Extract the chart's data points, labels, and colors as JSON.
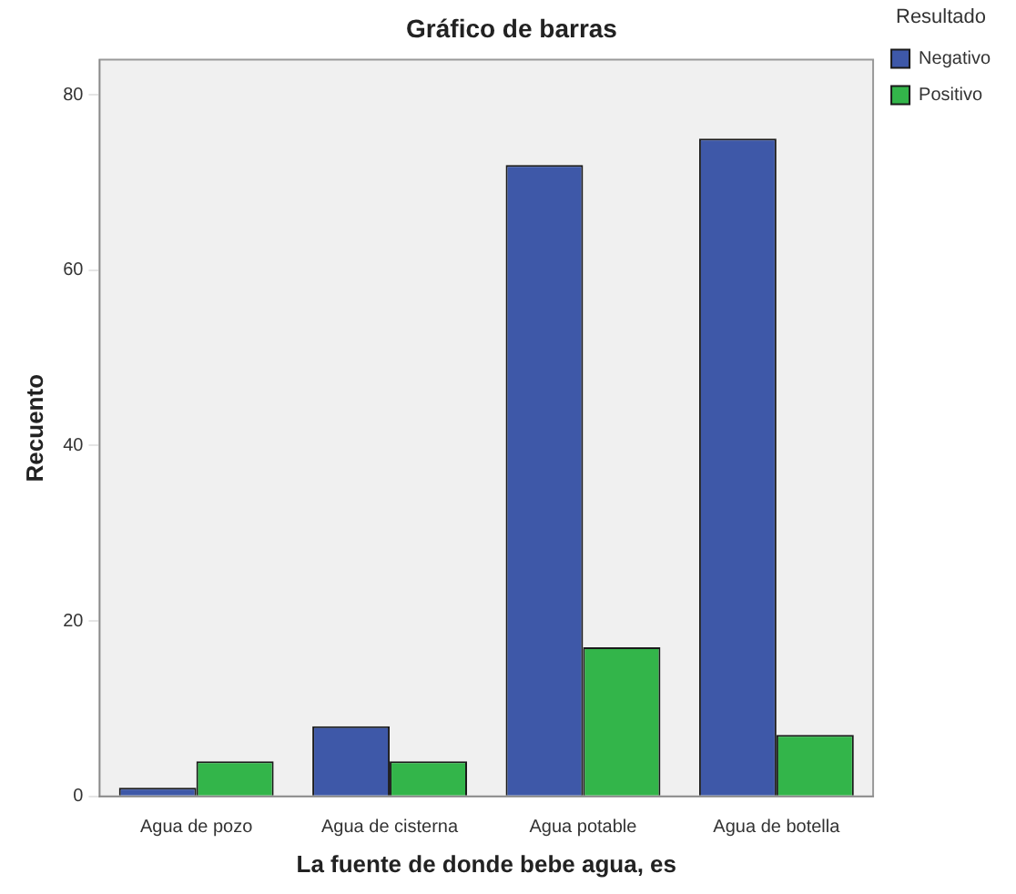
{
  "chart_data": {
    "type": "bar",
    "title": "Gráfico de barras",
    "xlabel": "La fuente de donde bebe agua, es",
    "ylabel": "Recuento",
    "legend_title": "Resultado",
    "categories": [
      "Agua de pozo",
      "Agua de cisterna",
      "Agua potable",
      "Agua de botella"
    ],
    "series": [
      {
        "name": "Negativo",
        "color": "#3e58a8",
        "values": [
          1,
          8,
          72,
          75
        ]
      },
      {
        "name": "Positivo",
        "color": "#33b54a",
        "values": [
          4,
          4,
          17,
          7
        ]
      }
    ],
    "ylim": [
      0,
      84
    ],
    "yticks": [
      0,
      20,
      40,
      60,
      80
    ],
    "grid": false,
    "legend": "top right"
  }
}
